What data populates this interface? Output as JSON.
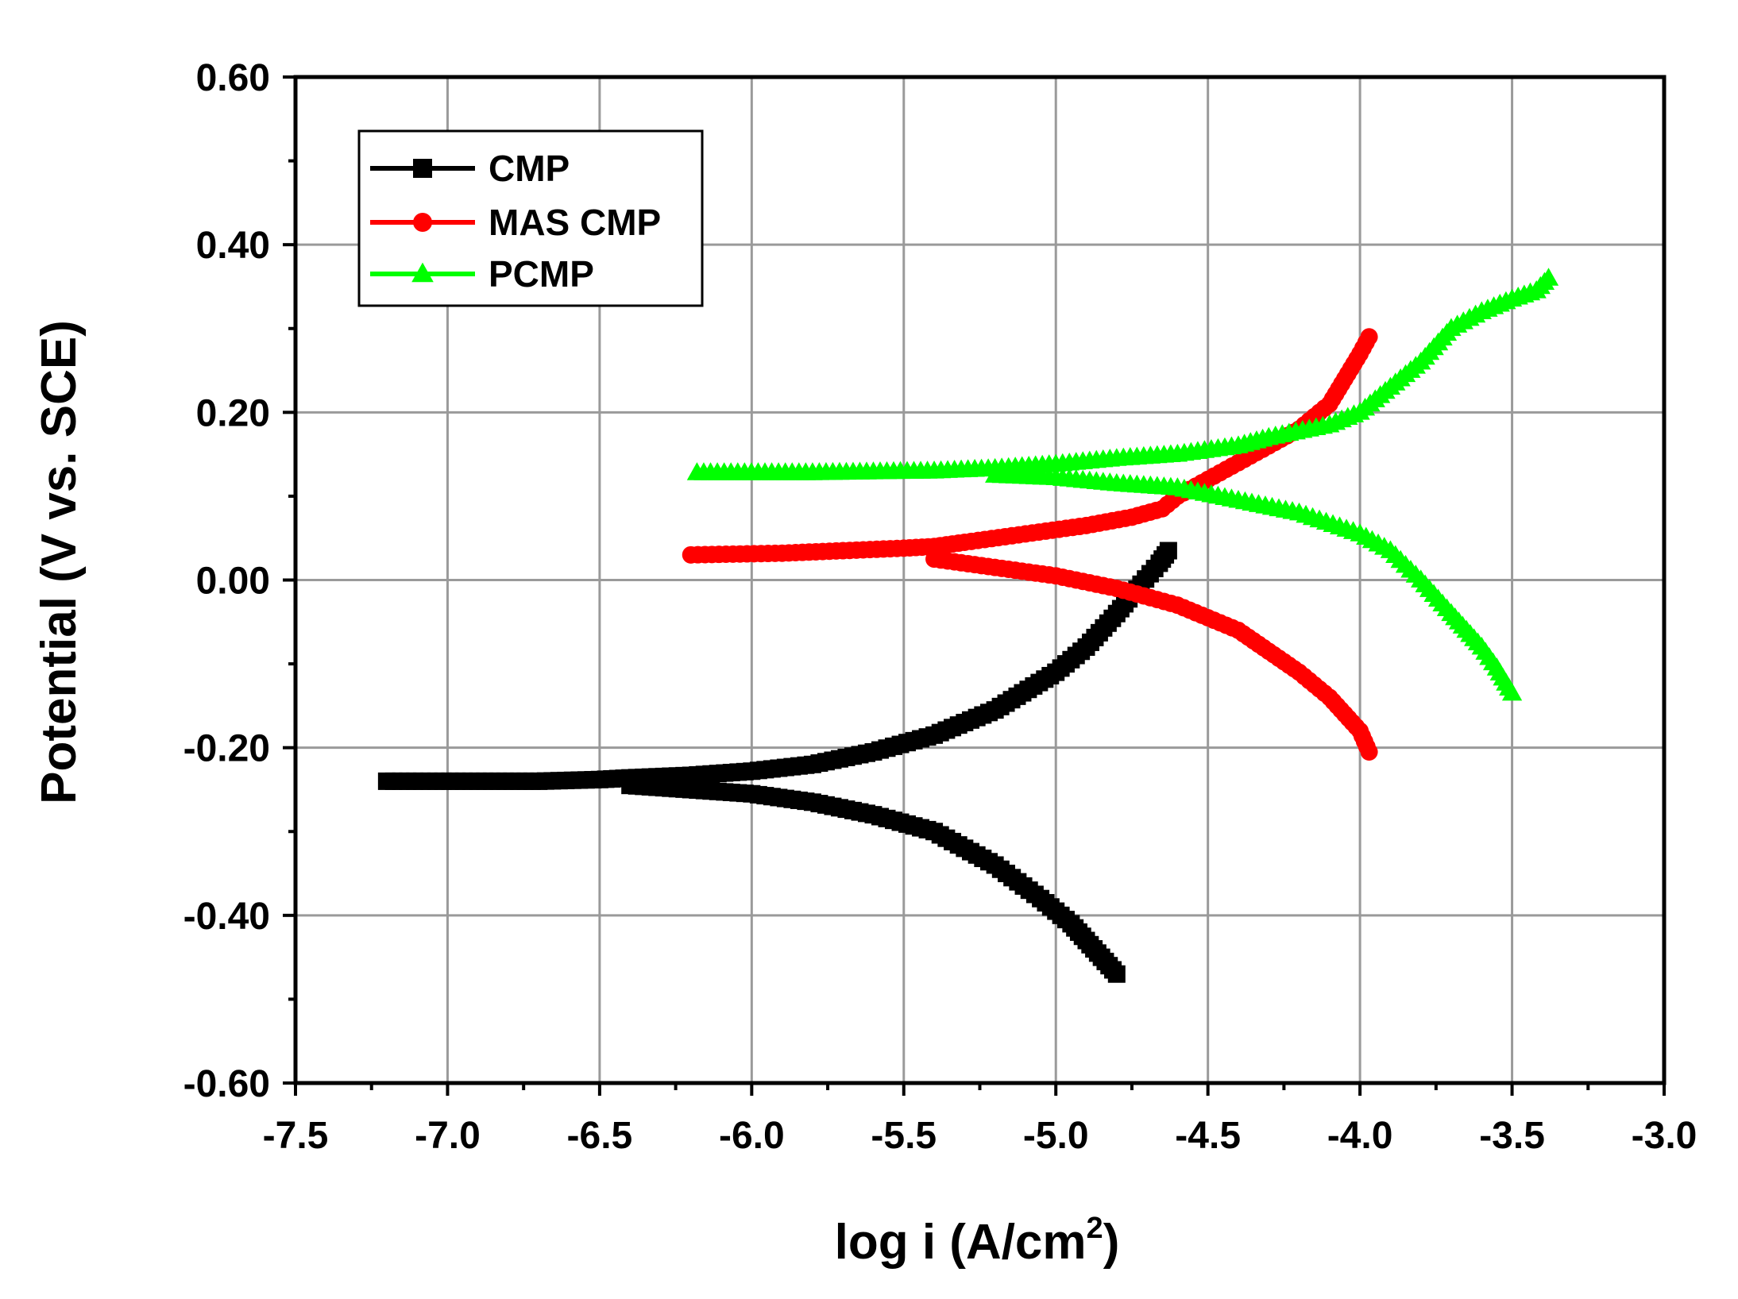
{
  "chart_data": {
    "type": "scatter",
    "title": "",
    "xlabel_main": "log i (A/cm",
    "xlabel_sup": "2",
    "xlabel_close": ")",
    "ylabel": "Potential (V vs. SCE)",
    "xlim": [
      -7.5,
      -3.0
    ],
    "ylim": [
      -0.6,
      0.6
    ],
    "xticks": [
      -7.5,
      -7.0,
      -6.5,
      -6.0,
      -5.5,
      -5.0,
      -4.5,
      -4.0,
      -3.5,
      -3.0
    ],
    "xtick_labels": [
      "-7.5",
      "-7.0",
      "-6.5",
      "-6.0",
      "-5.5",
      "-5.0",
      "-4.5",
      "-4.0",
      "-3.5",
      "-3.0"
    ],
    "yticks": [
      -0.6,
      -0.4,
      -0.2,
      0.0,
      0.2,
      0.4,
      0.6
    ],
    "ytick_labels": [
      "-0.60",
      "-0.40",
      "-0.20",
      "0.00",
      "0.20",
      "0.40",
      "0.60"
    ],
    "grid": true,
    "legend_position": "top-left",
    "series": [
      {
        "name": "CMP",
        "color": "#000000",
        "marker": "square",
        "anodic": {
          "x": [
            -7.2,
            -6.9,
            -6.7,
            -6.5,
            -6.4,
            -6.2,
            -6.0,
            -5.8,
            -5.6,
            -5.4,
            -5.2,
            -5.0,
            -4.9,
            -4.8,
            -4.72,
            -4.66,
            -4.63
          ],
          "y": [
            -0.24,
            -0.24,
            -0.24,
            -0.238,
            -0.236,
            -0.233,
            -0.228,
            -0.22,
            -0.205,
            -0.185,
            -0.155,
            -0.11,
            -0.08,
            -0.04,
            -0.005,
            0.02,
            0.035
          ]
        },
        "cathodic": {
          "x": [
            -6.4,
            -6.2,
            -6.0,
            -5.8,
            -5.6,
            -5.4,
            -5.2,
            -5.05,
            -4.95,
            -4.9,
            -4.85,
            -4.8
          ],
          "y": [
            -0.245,
            -0.25,
            -0.255,
            -0.265,
            -0.28,
            -0.3,
            -0.34,
            -0.38,
            -0.41,
            -0.43,
            -0.45,
            -0.47
          ]
        }
      },
      {
        "name": "MAS CMP",
        "color": "#ff0000",
        "marker": "circle",
        "anodic": {
          "x": [
            -6.2,
            -5.9,
            -5.7,
            -5.5,
            -5.4,
            -5.3,
            -5.1,
            -4.9,
            -4.75,
            -4.65,
            -4.6,
            -4.5,
            -4.4,
            -4.3,
            -4.2,
            -4.1,
            -4.05,
            -4.0,
            -3.97
          ],
          "y": [
            0.03,
            0.032,
            0.035,
            0.038,
            0.04,
            0.045,
            0.055,
            0.065,
            0.075,
            0.085,
            0.1,
            0.12,
            0.14,
            0.16,
            0.18,
            0.21,
            0.24,
            0.27,
            0.29
          ]
        },
        "cathodic": {
          "x": [
            -5.4,
            -5.2,
            -5.0,
            -4.8,
            -4.6,
            -4.4,
            -4.3,
            -4.2,
            -4.1,
            -4.05,
            -4.0,
            -3.97
          ],
          "y": [
            0.025,
            0.015,
            0.005,
            -0.01,
            -0.03,
            -0.06,
            -0.085,
            -0.11,
            -0.14,
            -0.16,
            -0.18,
            -0.205
          ]
        }
      },
      {
        "name": "PCMP",
        "color": "#00ff00",
        "marker": "triangle",
        "anodic": {
          "x": [
            -6.18,
            -5.8,
            -5.4,
            -5.2,
            -5.0,
            -4.8,
            -4.6,
            -4.4,
            -4.3,
            -4.1,
            -4.0,
            -3.9,
            -3.8,
            -3.7,
            -3.6,
            -3.5,
            -3.42,
            -3.38
          ],
          "y": [
            0.128,
            0.128,
            0.13,
            0.133,
            0.138,
            0.145,
            0.15,
            0.16,
            0.17,
            0.185,
            0.2,
            0.23,
            0.26,
            0.3,
            0.32,
            0.335,
            0.345,
            0.36
          ]
        },
        "cathodic": {
          "x": [
            -5.2,
            -5.0,
            -4.8,
            -4.6,
            -4.4,
            -4.2,
            -4.0,
            -3.9,
            -3.8,
            -3.7,
            -3.65,
            -3.6,
            -3.55,
            -3.5
          ],
          "y": [
            0.125,
            0.122,
            0.115,
            0.11,
            0.095,
            0.08,
            0.055,
            0.035,
            0.0,
            -0.04,
            -0.06,
            -0.08,
            -0.105,
            -0.135
          ]
        }
      }
    ]
  }
}
